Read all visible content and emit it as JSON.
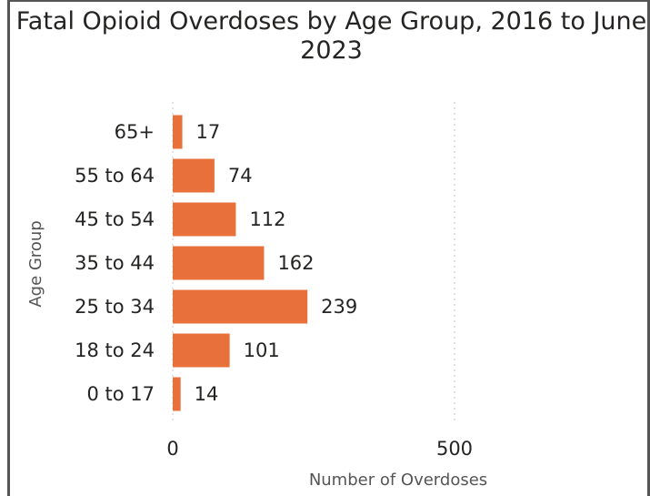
{
  "chart_data": {
    "type": "bar",
    "orientation": "horizontal",
    "title": "Fatal Opioid Overdoses by Age Group, 2016 to June 2023",
    "xlabel": "Number of Overdoses",
    "ylabel": "Age Group",
    "categories": [
      "65+",
      "55 to 64",
      "45 to 54",
      "35 to 44",
      "25 to 34",
      "18 to 24",
      "0 to 17"
    ],
    "values": [
      17,
      74,
      112,
      162,
      239,
      101,
      14
    ],
    "xlim": [
      0,
      500
    ],
    "x_ticks": [
      "0",
      "500"
    ],
    "grid": true,
    "bar_color": "#e8703a"
  }
}
